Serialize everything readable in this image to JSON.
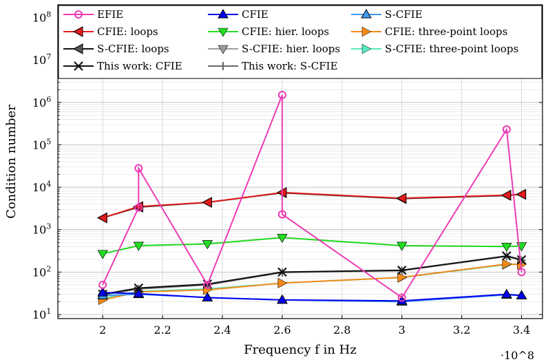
{
  "chart_data": {
    "type": "line",
    "xlabel": "Frequency f in Hz",
    "ylabel": "Condition number",
    "x_multiplier_label": "·10^8",
    "xlim": [
      1.85,
      3.47
    ],
    "ylim": [
      8,
      200000000
    ],
    "yscale": "log",
    "grid": true,
    "legend_position": "top",
    "x_ticks": [
      2,
      2.2,
      2.4,
      2.6,
      2.8,
      3,
      3.2,
      3.4
    ],
    "x_tick_labels": [
      "2",
      "2.2",
      "2.4",
      "2.6",
      "2.8",
      "3",
      "3.2",
      "3.4"
    ],
    "y_ticks": [
      10,
      100,
      1000,
      10000,
      100000,
      1000000,
      10000000,
      100000000
    ],
    "y_tick_labels": [
      {
        "base": "10",
        "exp": "1"
      },
      {
        "base": "10",
        "exp": "2"
      },
      {
        "base": "10",
        "exp": "3"
      },
      {
        "base": "10",
        "exp": "4"
      },
      {
        "base": "10",
        "exp": "5"
      },
      {
        "base": "10",
        "exp": "6"
      },
      {
        "base": "10",
        "exp": "7"
      },
      {
        "base": "10",
        "exp": "8"
      }
    ],
    "series": [
      {
        "name": "EFIE",
        "color": "#ec3bb4",
        "marker": "circle",
        "markerFill": "none",
        "x": [
          2,
          2.12,
          2.12,
          2.35,
          2.6,
          2.6,
          3,
          3.35,
          3.4
        ],
        "y": [
          50,
          3300,
          28000,
          50,
          1500000,
          2300,
          25,
          230000,
          100
        ]
      },
      {
        "name": "CFIE",
        "color": "#0000ee",
        "marker": "triangle-up",
        "markerFill": "#0000ee",
        "x": [
          2,
          2.12,
          2.35,
          2.6,
          3,
          3.35,
          3.4
        ],
        "y": [
          33,
          31,
          25,
          22,
          21,
          30,
          28
        ]
      },
      {
        "name": "S-CFIE",
        "color": "#3f9bee",
        "marker": "triangle-up",
        "markerFill": "#3f9bee",
        "x": [
          2,
          2.12,
          2.35,
          2.6,
          3,
          3.35,
          3.4
        ],
        "y": [
          28,
          30,
          25,
          22,
          20,
          29,
          28
        ]
      },
      {
        "name": "CFIE: loops",
        "color": "#e41a1c",
        "marker": "triangle-left",
        "markerFill": "#e41a1c",
        "x": [
          2,
          2.12,
          2.35,
          2.6,
          3,
          3.35,
          3.4
        ],
        "y": [
          1900,
          3500,
          4400,
          7500,
          5500,
          6500,
          6800
        ]
      },
      {
        "name": "CFIE: hier. loops",
        "color": "#22dd22",
        "marker": "triangle-down",
        "markerFill": "#22dd22",
        "x": [
          2,
          2.12,
          2.35,
          2.6,
          3,
          3.35,
          3.4
        ],
        "y": [
          270,
          420,
          460,
          650,
          420,
          400,
          410
        ]
      },
      {
        "name": "CFIE: three-point loops",
        "color": "#f58a18",
        "marker": "triangle-right",
        "markerFill": "#f58a18",
        "x": [
          2,
          2.12,
          2.35,
          2.6,
          3,
          3.35,
          3.4
        ],
        "y": [
          22,
          34,
          38,
          55,
          75,
          155,
          150
        ]
      },
      {
        "name": "S-CFIE: loops",
        "color": "#111111",
        "marker": "triangle-left",
        "markerFill": "#555555",
        "x": [
          2,
          2.12,
          2.35,
          2.6,
          3,
          3.35,
          3.4
        ],
        "y": [
          1900,
          3400,
          4400,
          7400,
          5400,
          6400,
          6800
        ]
      },
      {
        "name": "S-CFIE: hier. loops",
        "color": "#9c9c9c",
        "marker": "triangle-down",
        "markerFill": "#9c9c9c",
        "x": [
          2,
          2.12,
          2.35,
          2.6,
          3,
          3.35,
          3.4
        ],
        "y": [
          270,
          420,
          460,
          650,
          420,
          400,
          410
        ]
      },
      {
        "name": "S-CFIE: three-point loops",
        "color": "#56e8bd",
        "marker": "triangle-right",
        "markerFill": "#56e8bd",
        "x": [
          2,
          2.12,
          2.35,
          2.6,
          3,
          3.35,
          3.4
        ],
        "y": [
          24,
          35,
          40,
          55,
          74,
          150,
          155
        ]
      },
      {
        "name": "This work: CFIE",
        "color": "#111111",
        "marker": "x",
        "markerFill": "none",
        "x": [
          2,
          2.12,
          2.35,
          2.6,
          3,
          3.35,
          3.4
        ],
        "y": [
          30,
          42,
          52,
          100,
          110,
          240,
          195
        ]
      },
      {
        "name": "This work: S-CFIE",
        "color": "#666666",
        "marker": "plus",
        "markerFill": "none",
        "x": [
          2,
          2.12,
          2.35,
          2.6,
          3,
          3.35,
          3.4
        ],
        "y": [
          29,
          40,
          50,
          98,
          108,
          235,
          190
        ]
      }
    ],
    "legend_order": [
      "EFIE",
      "CFIE",
      "S-CFIE",
      "CFIE: loops",
      "CFIE: hier. loops",
      "CFIE: three-point loops",
      "S-CFIE: loops",
      "S-CFIE: hier. loops",
      "S-CFIE: three-point loops",
      "This work: CFIE",
      "This work: S-CFIE"
    ]
  }
}
